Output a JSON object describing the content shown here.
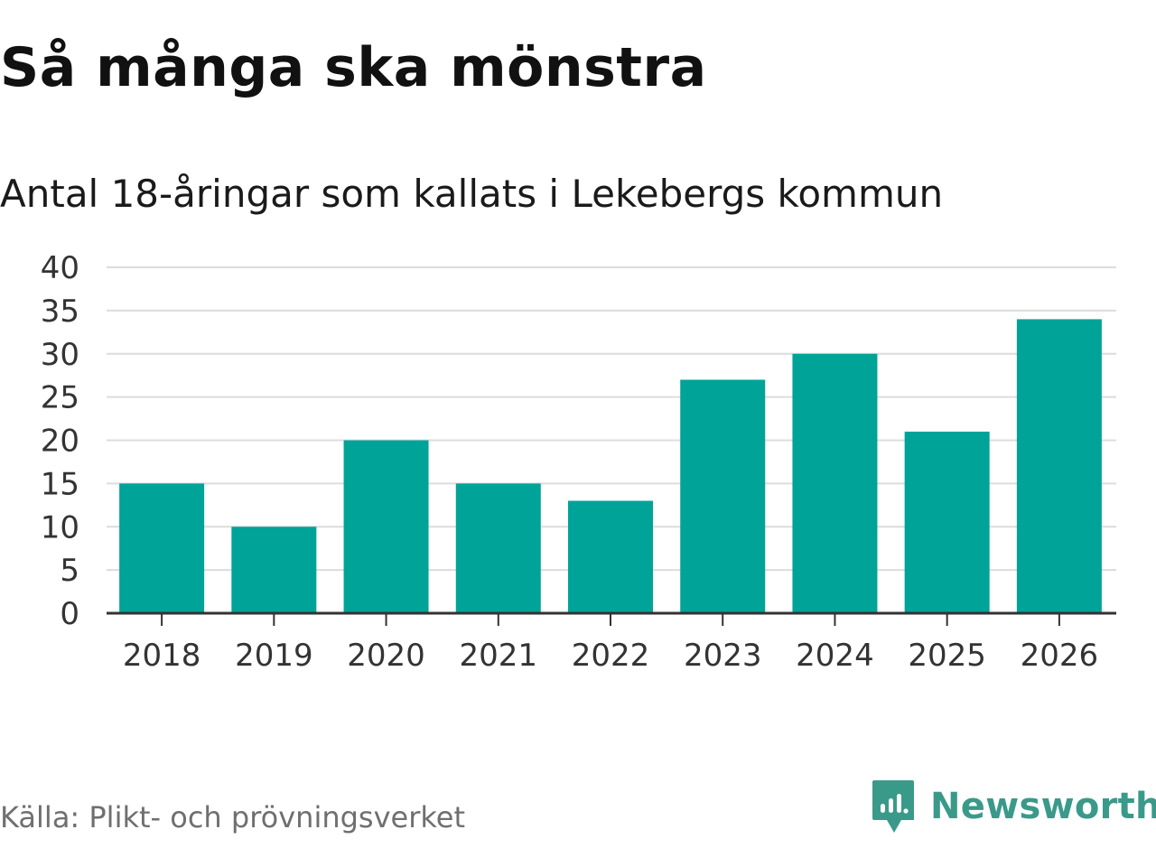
{
  "chart_data": {
    "type": "bar",
    "title": "Så många ska mönstra",
    "subtitle": "Antal 18-åringar som kallats i Lekebergs kommun",
    "categories": [
      "2018",
      "2019",
      "2020",
      "2021",
      "2022",
      "2023",
      "2024",
      "2025",
      "2026"
    ],
    "values": [
      15,
      10,
      20,
      15,
      13,
      27,
      30,
      21,
      34
    ],
    "ylim": [
      0,
      40
    ],
    "yticks": [
      "0",
      "5",
      "10",
      "15",
      "20",
      "25",
      "30",
      "35",
      "40"
    ],
    "ytick_values": [
      0,
      5,
      10,
      15,
      20,
      25,
      30,
      35,
      40
    ],
    "xlabel": "",
    "ylabel": "",
    "grid": true,
    "bar_color": "#00a398"
  },
  "footer": {
    "source": "Källa: Plikt- och prövningsverket",
    "brand": "Newsworthy",
    "brand_icon": "newsworthy-logo-icon",
    "brand_color": "#3a9a8a"
  }
}
